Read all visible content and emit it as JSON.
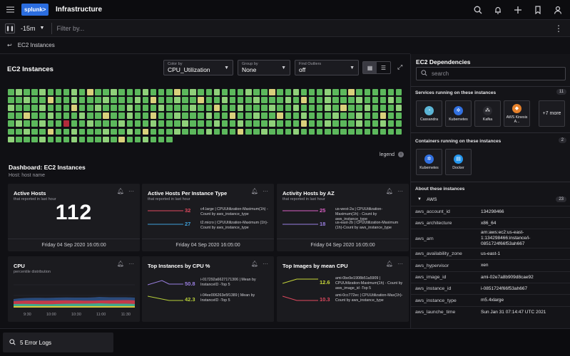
{
  "topbar": {
    "logo_text": "splunk>",
    "title": "Infrastructure"
  },
  "filterbar": {
    "time_range": "-15m",
    "filter_placeholder": "Filter by..."
  },
  "breadcrumb": {
    "label": "EC2 Instances"
  },
  "main": {
    "title": "EC2 Instances",
    "color_by": {
      "label": "Color by",
      "value": "CPU_Utilization"
    },
    "group_by": {
      "label": "Group by",
      "value": "None"
    },
    "find_outliers": {
      "label": "Find Outliers",
      "value": "off"
    },
    "legend_label": "legend",
    "heatmap": {
      "colors": {
        "green": "#5cb85c",
        "light_green": "#8fd07a",
        "yellow": "#d9d07c",
        "red": "#b22a3a"
      }
    }
  },
  "dashboard": {
    "title": "Dashboard: EC2 Instances",
    "host_label": "Host: host name",
    "cards": [
      {
        "title": "Active Hosts",
        "subtitle": "that reported in last hour",
        "value": "112",
        "footer": "Friday 04 Sep 2020 16:05:00"
      },
      {
        "title": "Active Hosts Per Instance Type",
        "subtitle": "that reported in last hour",
        "footer": "Friday 04 Sep 2020 16:05:00",
        "rows": [
          {
            "num": "32",
            "color": "#e04a5f",
            "text": "c4.large | CPUUtilization-Maximum(1h) - Count by aws_instance_type"
          },
          {
            "num": "27",
            "color": "#3fa0d8",
            "text": "t2.micro | CPUUtilization-Maximum (1h)-Count by aws_instance_type"
          }
        ]
      },
      {
        "title": "Activity Hosts by AZ",
        "subtitle": "that reported in last hour",
        "footer": "Friday 04 Sep 2020 16:05:00",
        "rows": [
          {
            "num": "25",
            "color": "#d95fc4",
            "text": "us-west-2a | CPUUtilization-Maximum(1h) - Count by aws_instance_type"
          },
          {
            "num": "18",
            "color": "#9a7fe0",
            "text": "us-east-2b | CPUUtilization-Maximum (1h)-Count by aws_instance_type"
          }
        ]
      },
      {
        "title": "CPU",
        "subtitle": "percentile distribution",
        "x_ticks": [
          "9:30",
          "10:00",
          "10:30",
          "11:00",
          "11:30"
        ]
      },
      {
        "title": "Top Instances by CPU %",
        "rows": [
          {
            "num": "50.8",
            "color": "#9a7fe0",
            "text": "i-017292a6627171306 | Mean by InstanceID -Top 5"
          },
          {
            "num": "42.3",
            "color": "#b7cf3a",
            "text": "i-04ee006263e5f1389 | Mean by InstanceID -Top 5"
          }
        ]
      },
      {
        "title": "Top Images by mean CPU",
        "rows": [
          {
            "num": "12.6",
            "color": "#c8d83a",
            "text": "ami-0be9e1908b51a5909 | CPUUtilization-Maximum(1h) - Count by aws_image_id -Top 5"
          },
          {
            "num": "10.3",
            "color": "#e04a5f",
            "text": "ami-0cc772ec | CPUUtilization-Max(1h)-Count by aws_instance_type"
          }
        ]
      }
    ]
  },
  "sidebar": {
    "title": "EC2 Dependencies",
    "search_placeholder": "search",
    "services_header": "Services running on these instances",
    "services_count": "11",
    "services": [
      {
        "name": "Cassandra",
        "icon": "cassandra-icon",
        "color": "#5bb5d6"
      },
      {
        "name": "Kubernetes",
        "icon": "kubernetes-icon",
        "color": "#3170e0"
      },
      {
        "name": "Kafka",
        "icon": "kafka-icon",
        "color": "#2a2a30"
      },
      {
        "name": "AWS Kinesis A...",
        "icon": "aws-kinesis-icon",
        "color": "#e6812b"
      },
      {
        "name": "+7 more",
        "icon": "",
        "color": ""
      }
    ],
    "containers_header": "Containers running on these instances",
    "containers_count": "2",
    "containers": [
      {
        "name": "Kubernetes",
        "icon": "kubernetes-icon",
        "color": "#3170e0"
      },
      {
        "name": "Docker",
        "icon": "docker-icon",
        "color": "#2496ed"
      }
    ],
    "about_header": "About these instances",
    "aws_group": {
      "label": "AWS",
      "count": "23"
    },
    "properties": [
      {
        "key": "aws_account_id",
        "value": "134298466"
      },
      {
        "key": "aws_architecture",
        "value": "x86_64"
      },
      {
        "key": "aws_arn",
        "value": "arn:aws:ec2:us-east-1:134298466:instance/i-0851724f66f53ah667"
      },
      {
        "key": "aws_availability_zone",
        "value": "us-east-1"
      },
      {
        "key": "aws_hypervisor",
        "value": "xen"
      },
      {
        "key": "aws_image_id",
        "value": "ami-02e7a8b909d8cae92"
      },
      {
        "key": "aws_instance_id",
        "value": "i-0851724f66f53ah667"
      },
      {
        "key": "aws_instance_type",
        "value": "m5.4xlarge"
      },
      {
        "key": "aws_launche_time",
        "value": "Sun Jan 31 07:14:47 UTC 2021"
      }
    ]
  },
  "bottombar": {
    "error_logs": "5 Error Logs"
  }
}
